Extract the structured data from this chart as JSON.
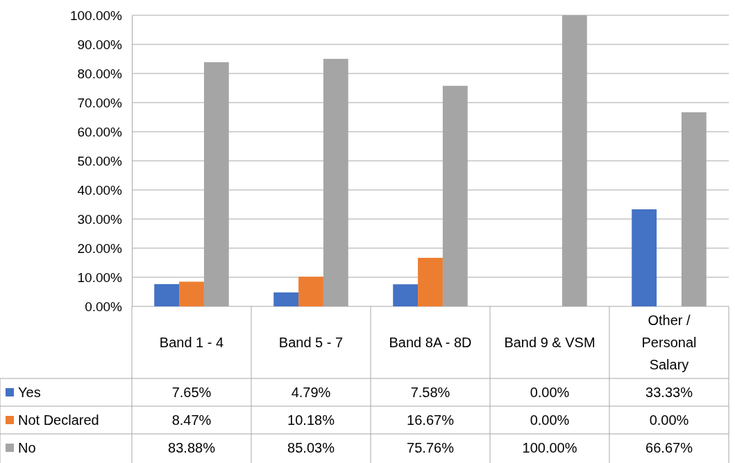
{
  "chart_data": {
    "type": "bar",
    "categories": [
      "Band 1 - 4",
      "Band 5 - 7",
      "Band 8A - 8D",
      "Band 9 & VSM",
      "Other / Personal Salary"
    ],
    "series": [
      {
        "name": "Yes",
        "color": "#4472c4",
        "values": [
          7.65,
          4.79,
          7.58,
          0.0,
          33.33
        ],
        "value_labels": [
          "7.65%",
          "4.79%",
          "7.58%",
          "0.00%",
          "33.33%"
        ]
      },
      {
        "name": "Not Declared",
        "color": "#ed7d31",
        "values": [
          8.47,
          10.18,
          16.67,
          0.0,
          0.0
        ],
        "value_labels": [
          "8.47%",
          "10.18%",
          "16.67%",
          "0.00%",
          "0.00%"
        ]
      },
      {
        "name": "No",
        "color": "#a5a5a5",
        "values": [
          83.88,
          85.03,
          75.76,
          100.0,
          66.67
        ],
        "value_labels": [
          "83.88%",
          "85.03%",
          "75.76%",
          "100.00%",
          "66.67%"
        ]
      }
    ],
    "ylim": [
      0,
      100
    ],
    "yticks": [
      {
        "value": 0,
        "label": "0.00%"
      },
      {
        "value": 10,
        "label": "10.00%"
      },
      {
        "value": 20,
        "label": "20.00%"
      },
      {
        "value": 30,
        "label": "30.00%"
      },
      {
        "value": 40,
        "label": "40.00%"
      },
      {
        "value": 50,
        "label": "50.00%"
      },
      {
        "value": 60,
        "label": "60.00%"
      },
      {
        "value": 70,
        "label": "70.00%"
      },
      {
        "value": 80,
        "label": "80.00%"
      },
      {
        "value": 90,
        "label": "90.00%"
      },
      {
        "value": 100,
        "label": "100.00%"
      }
    ],
    "grid": "y",
    "legend": "bottom"
  }
}
